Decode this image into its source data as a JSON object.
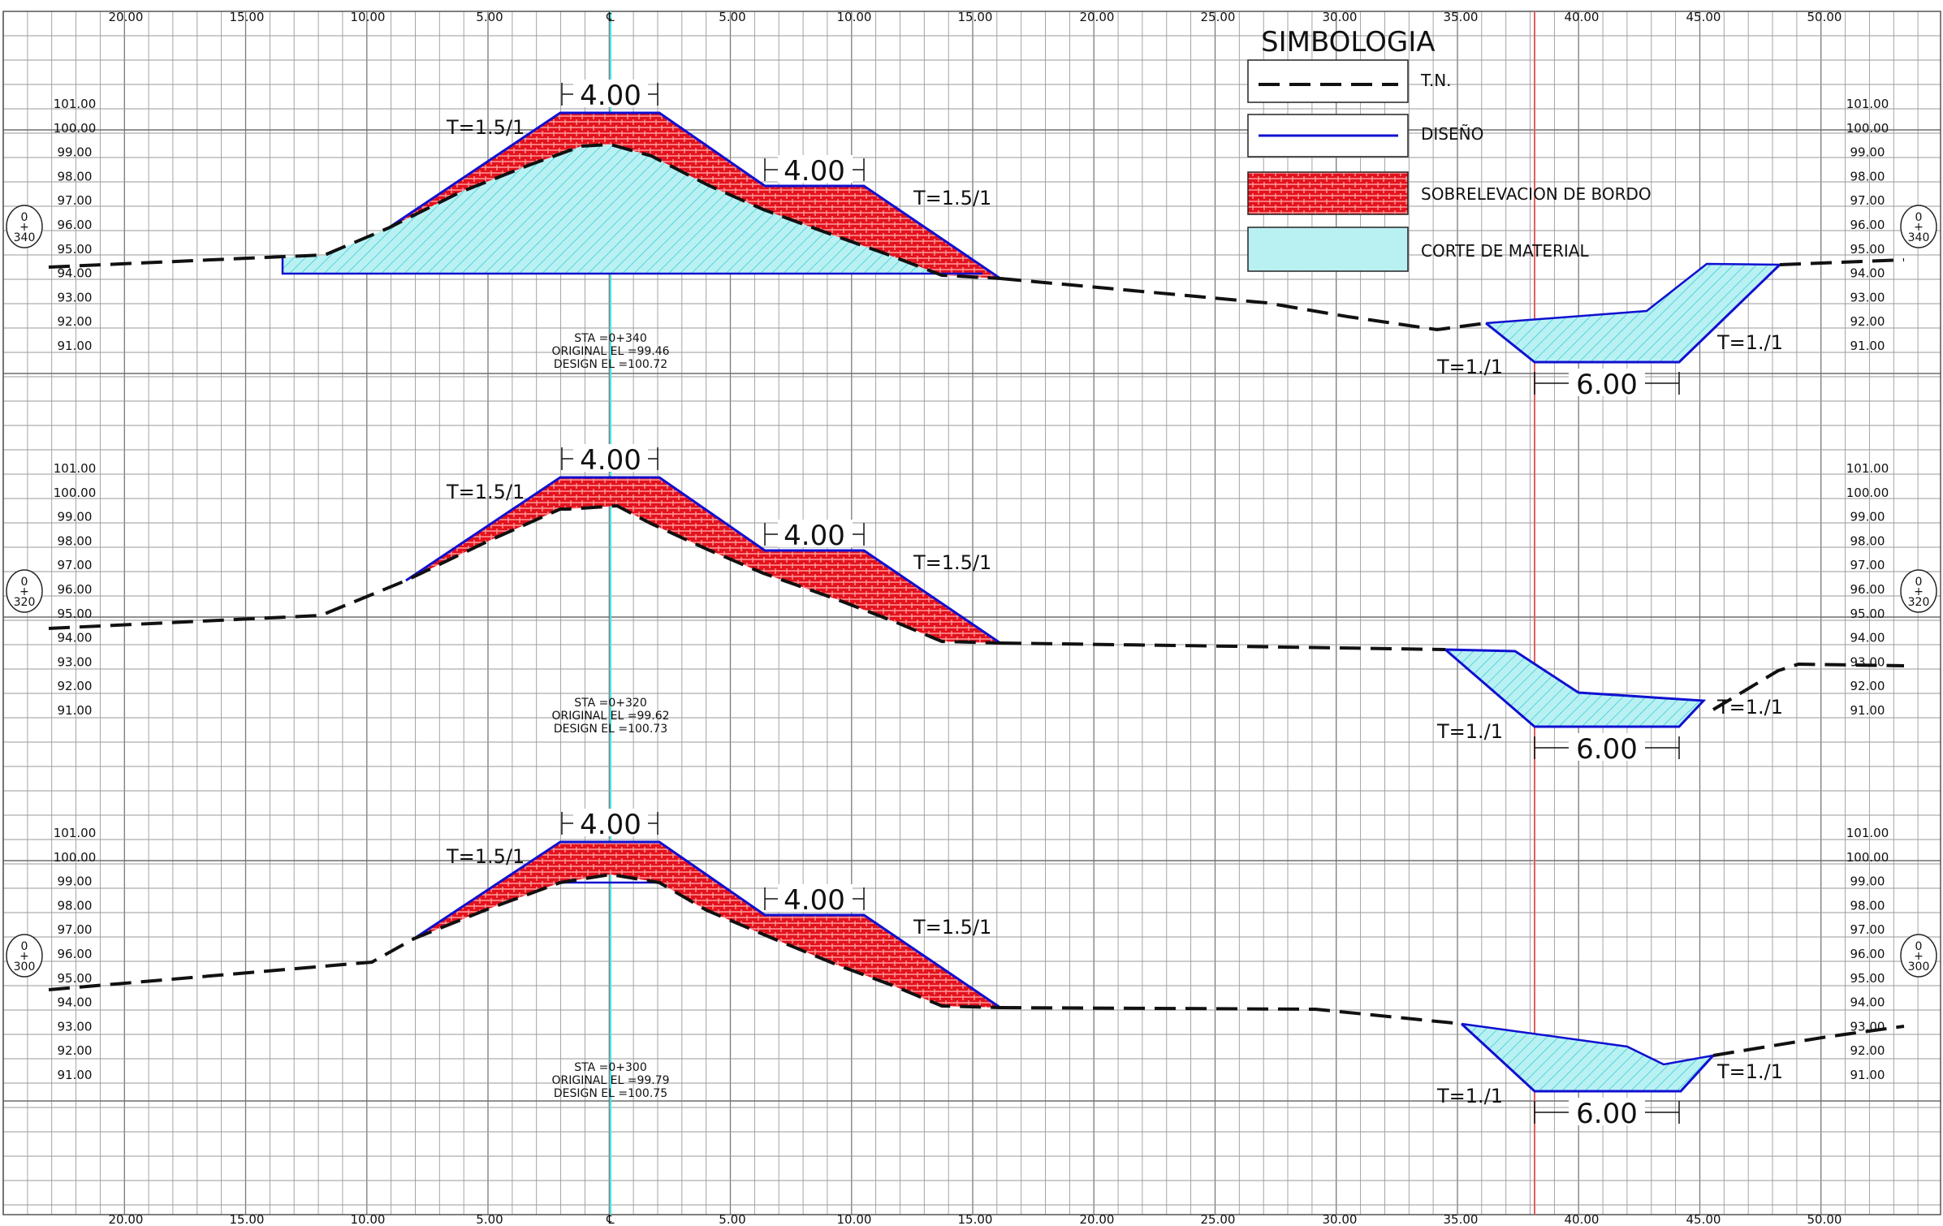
{
  "x_axis": {
    "top_labels": [
      "20.00",
      "15.00",
      "10.00",
      "5.00",
      "℄",
      "5.00",
      "10.00",
      "15.00",
      "20.00",
      "25.00",
      "30.00",
      "35.00",
      "40.00",
      "45.00",
      "50.00"
    ],
    "bottom_labels": [
      "20.00",
      "15.00",
      "10.00",
      "5.00",
      "℄",
      "5.00",
      "10.00",
      "15.00",
      "20.00",
      "25.00",
      "30.00",
      "35.00",
      "40.00",
      "45.00",
      "50.00"
    ]
  },
  "legend": {
    "title": "SIMBOLOGIA",
    "items": [
      {
        "label": "T.N.",
        "kind": "natural-ground-dashed-line"
      },
      {
        "label": "DISEÑO",
        "kind": "design-solid-line",
        "color": "#1010d0"
      },
      {
        "label": "SOBRELEVACION DE BORDO",
        "kind": "fill-hatch",
        "color": "#e3121d"
      },
      {
        "label": "CORTE DE MATERIAL",
        "kind": "fill-hatch",
        "color": "#a6ecef"
      }
    ]
  },
  "colors": {
    "grid": "#8c8c8c",
    "design_line": "#1010d0",
    "natural_ground": "#111111",
    "sobrelevacion_fill": "#e3121d",
    "corte_fill": "#a6ecef",
    "corte_hatch": "#2cc8d4",
    "centerline": "#43e6e6",
    "red_guide": "#e06060"
  },
  "sections": [
    {
      "station_mark": {
        "top": "0",
        "mid": "+",
        "bottom": "340"
      },
      "elevations": [
        "101.00",
        "100.00",
        "99.00",
        "98.00",
        "97.00",
        "96.00",
        "95.00",
        "94.00",
        "93.00",
        "92.00",
        "91.00"
      ],
      "dimension_top": "4.00",
      "dimension_berm": "4.00",
      "dimension_channel": "6.00",
      "slope_left": "T=1.5/1",
      "slope_right": "T=1.5/1",
      "slope_channel_left": "T=1./1",
      "slope_channel_right": "T=1./1",
      "info": {
        "sta": "STA =0+340",
        "original": "ORIGINAL EL =99.46",
        "design": "DESIGN EL =100.72"
      }
    },
    {
      "station_mark": {
        "top": "0",
        "mid": "+",
        "bottom": "320"
      },
      "elevations": [
        "101.00",
        "100.00",
        "99.00",
        "98.00",
        "97.00",
        "96.00",
        "95.00",
        "94.00",
        "93.00",
        "92.00",
        "91.00"
      ],
      "dimension_top": "4.00",
      "dimension_berm": "4.00",
      "dimension_channel": "6.00",
      "slope_left": "T=1.5/1",
      "slope_right": "T=1.5/1",
      "slope_channel_left": "T=1./1",
      "slope_channel_right": "T=1./1",
      "info": {
        "sta": "STA =0+320",
        "original": "ORIGINAL EL =99.62",
        "design": "DESIGN EL =100.73"
      }
    },
    {
      "station_mark": {
        "top": "0",
        "mid": "+",
        "bottom": "300"
      },
      "elevations": [
        "101.00",
        "100.00",
        "99.00",
        "98.00",
        "97.00",
        "96.00",
        "95.00",
        "94.00",
        "93.00",
        "92.00",
        "91.00"
      ],
      "dimension_top": "4.00",
      "dimension_berm": "4.00",
      "dimension_channel": "6.00",
      "slope_left": "T=1.5/1",
      "slope_right": "T=1.5/1",
      "slope_channel_left": "T=1./1",
      "slope_channel_right": "T=1./1",
      "info": {
        "sta": "STA =0+300",
        "original": "ORIGINAL EL =99.79",
        "design": "DESIGN EL =100.75"
      }
    }
  ]
}
